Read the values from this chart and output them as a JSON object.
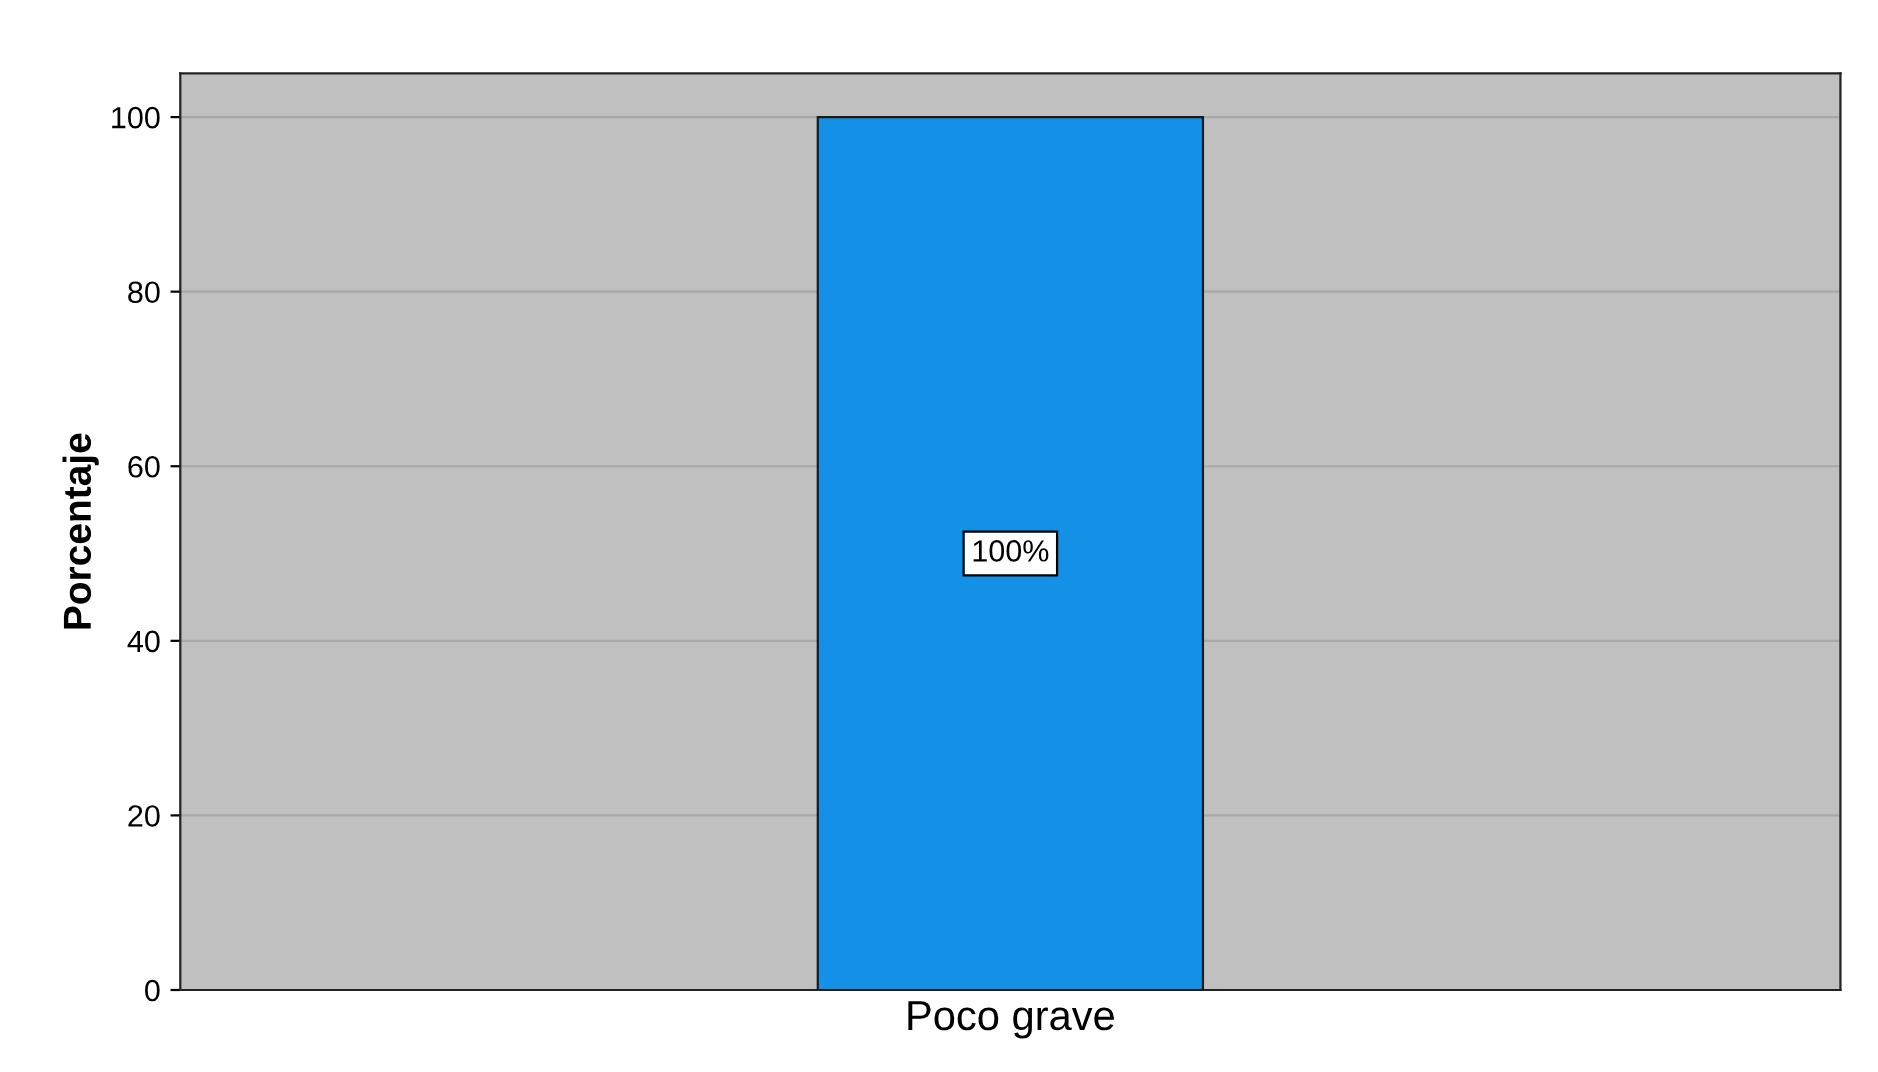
{
  "chart_data": {
    "type": "bar",
    "ylabel": "Porcentaje",
    "categories": [
      "Poco grave"
    ],
    "values": [
      100
    ],
    "color": "#1490e6",
    "value_labels": [
      "100%"
    ],
    "ylim": [
      0,
      105
    ],
    "yticks": [
      0,
      20,
      40,
      60,
      80,
      100
    ],
    "grid": "y"
  }
}
